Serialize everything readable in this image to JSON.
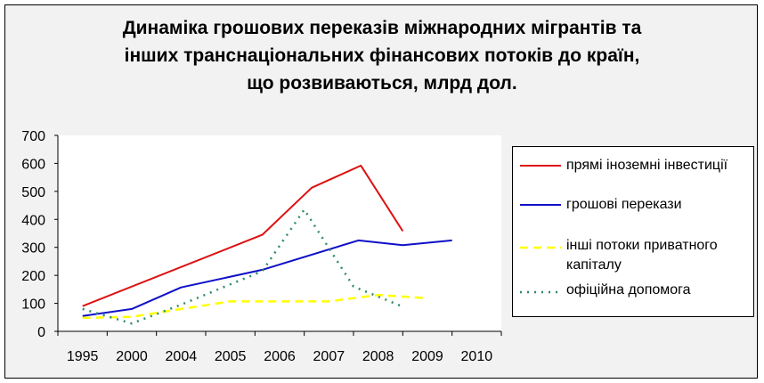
{
  "chart_data": {
    "type": "line",
    "title_lines": [
      "Динаміка грошових переказів міжнародних мігрантів та",
      "інших транснаціональних фінансових потоків до країн,",
      "що розвиваються, млрд дол."
    ],
    "categories": [
      "1995",
      "2000",
      "2004",
      "2005",
      "2006",
      "2007",
      "2008",
      "2009",
      "2010"
    ],
    "y_ticks": [
      "700",
      "600",
      "500",
      "400",
      "300",
      "200",
      "100",
      "0"
    ],
    "ylim": [
      0,
      700
    ],
    "xlabel": "",
    "ylabel": "",
    "grid": false,
    "legend_position": "right",
    "series": [
      {
        "name": "прямі іноземні інвестиції",
        "color": "#dd1111",
        "style": "solid",
        "points": [
          [
            1995,
            90
          ],
          [
            2005.65,
            345
          ],
          [
            2006.65,
            513
          ],
          [
            2007.65,
            592
          ],
          [
            2008.5,
            358
          ]
        ]
      },
      {
        "name": "грошові перекази",
        "color": "#1010c8",
        "style": "solid",
        "points": [
          [
            1995,
            55
          ],
          [
            2000,
            80
          ],
          [
            2004,
            157
          ],
          [
            2005.65,
            220
          ],
          [
            2007.6,
            325
          ],
          [
            2008.5,
            308
          ],
          [
            2009.5,
            325
          ]
        ]
      },
      {
        "name": "інші потоки приватного капіталу",
        "color": "#ffff00",
        "style": "dashed",
        "points": [
          [
            1995,
            48
          ],
          [
            2000,
            52
          ],
          [
            2004,
            80
          ],
          [
            2005,
            107
          ],
          [
            2006,
            107
          ],
          [
            2007,
            107
          ],
          [
            2008,
            130
          ],
          [
            2009,
            118
          ]
        ]
      },
      {
        "name": "офіційна допомога",
        "color": "#2e8b66",
        "style": "dotted",
        "points": [
          [
            1995,
            80
          ],
          [
            2000,
            28
          ],
          [
            2004,
            95
          ],
          [
            2005.65,
            215
          ],
          [
            2006.5,
            435
          ],
          [
            2007.5,
            160
          ],
          [
            2008.5,
            88
          ]
        ]
      }
    ]
  }
}
